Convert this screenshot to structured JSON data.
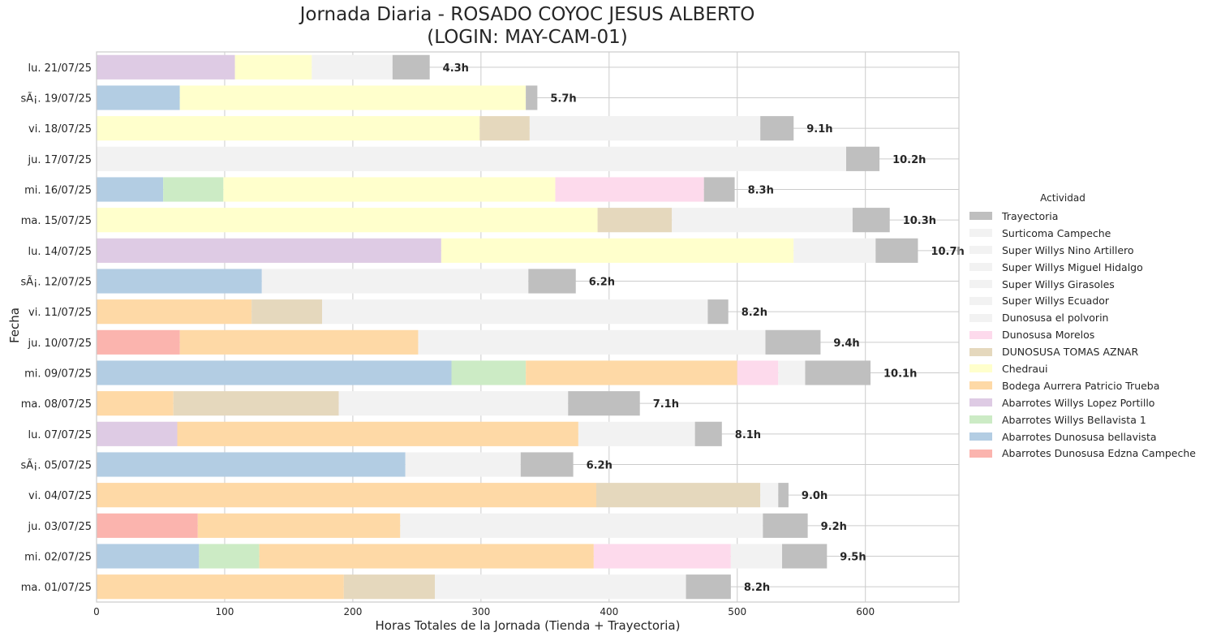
{
  "chart_data": {
    "type": "bar",
    "orientation": "horizontal",
    "stacked": true,
    "title_line1": "Jornada Diaria - ROSADO COYOC JESUS ALBERTO",
    "title_line2": "(LOGIN: MAY-CAM-01)",
    "xlabel": "Horas Totales de la Jornada (Tienda + Trayectoria)",
    "ylabel": "Fecha",
    "xlim": [
      0,
      673
    ],
    "xticks": [
      0,
      100,
      200,
      300,
      400,
      500,
      600
    ],
    "grid": true,
    "legend_title": "Actividad",
    "legend_position": "right",
    "legend": [
      {
        "name": "Trayectoria",
        "color": "#bfbfbf"
      },
      {
        "name": "Surticoma Campeche",
        "color": "#f2f2f2"
      },
      {
        "name": "Super Willys Nino Artillero",
        "color": "#f2f2f2"
      },
      {
        "name": "Super Willys Miguel Hidalgo",
        "color": "#f2f2f2"
      },
      {
        "name": "Super Willys Girasoles",
        "color": "#f2f2f2"
      },
      {
        "name": "Super Willys Ecuador",
        "color": "#f2f2f2"
      },
      {
        "name": "Dunosusa el polvorin",
        "color": "#f2f2f2"
      },
      {
        "name": "Dunosusa Morelos",
        "color": "#fddaec"
      },
      {
        "name": "DUNOSUSA TOMAS AZNAR",
        "color": "#e5d8bd"
      },
      {
        "name": "Chedraui",
        "color": "#ffffcc"
      },
      {
        "name": "Bodega Aurrera Patricio Trueba",
        "color": "#fed9a6"
      },
      {
        "name": "Abarrotes Willys Lopez Portillo",
        "color": "#decbe4"
      },
      {
        "name": "Abarrotes Willys Bellavista 1",
        "color": "#ccebc5"
      },
      {
        "name": "Abarrotes Dunosusa bellavista",
        "color": "#b3cde3"
      },
      {
        "name": "Abarrotes Dunosusa Edzna Campeche",
        "color": "#fbb4ae"
      }
    ],
    "colors": {
      "Abarrotes Dunosusa Edzna Campeche": "#fbb4ae",
      "Abarrotes Dunosusa bellavista": "#b3cde3",
      "Abarrotes Willys Bellavista 1": "#ccebc5",
      "Abarrotes Willys Lopez Portillo": "#decbe4",
      "Bodega Aurrera Patricio Trueba": "#fed9a6",
      "Chedraui": "#ffffcc",
      "DUNOSUSA TOMAS AZNAR": "#e5d8bd",
      "Dunosusa Morelos": "#fddaec",
      "Other stores": "#f2f2f2",
      "Trayectoria": "#bfbfbf"
    },
    "rows": [
      {
        "label": "lu. 21/07/25",
        "total": "4.3h",
        "segments": [
          {
            "series": "Abarrotes Willys Lopez Portillo",
            "value": 108
          },
          {
            "series": "Chedraui",
            "value": 60
          },
          {
            "series": "Other stores",
            "value": 63
          },
          {
            "series": "Trayectoria",
            "value": 29
          }
        ]
      },
      {
        "label": "sÃ¡. 19/07/25",
        "total": "5.7h",
        "segments": [
          {
            "series": "Abarrotes Dunosusa bellavista",
            "value": 65
          },
          {
            "series": "Chedraui",
            "value": 270
          },
          {
            "series": "Trayectoria",
            "value": 9
          }
        ]
      },
      {
        "label": "vi. 18/07/25",
        "total": "9.1h",
        "segments": [
          {
            "series": "Chedraui",
            "value": 299
          },
          {
            "series": "DUNOSUSA TOMAS AZNAR",
            "value": 39
          },
          {
            "series": "Other stores",
            "value": 180
          },
          {
            "series": "Trayectoria",
            "value": 26
          }
        ]
      },
      {
        "label": "ju. 17/07/25",
        "total": "10.2h",
        "segments": [
          {
            "series": "Other stores",
            "value": 585
          },
          {
            "series": "Trayectoria",
            "value": 26
          }
        ]
      },
      {
        "label": "mi. 16/07/25",
        "total": "8.3h",
        "segments": [
          {
            "series": "Abarrotes Dunosusa bellavista",
            "value": 52
          },
          {
            "series": "Abarrotes Willys Bellavista 1",
            "value": 47
          },
          {
            "series": "Chedraui",
            "value": 259
          },
          {
            "series": "Dunosusa Morelos",
            "value": 116
          },
          {
            "series": "Trayectoria",
            "value": 24
          }
        ]
      },
      {
        "label": "ma. 15/07/25",
        "total": "10.3h",
        "segments": [
          {
            "series": "Chedraui",
            "value": 391
          },
          {
            "series": "DUNOSUSA TOMAS AZNAR",
            "value": 58
          },
          {
            "series": "Other stores",
            "value": 141
          },
          {
            "series": "Trayectoria",
            "value": 29
          }
        ]
      },
      {
        "label": "lu. 14/07/25",
        "total": "10.7h",
        "segments": [
          {
            "series": "Abarrotes Willys Lopez Portillo",
            "value": 269
          },
          {
            "series": "Chedraui",
            "value": 275
          },
          {
            "series": "Other stores",
            "value": 64
          },
          {
            "series": "Trayectoria",
            "value": 33
          }
        ]
      },
      {
        "label": "sÃ¡. 12/07/25",
        "total": "6.2h",
        "segments": [
          {
            "series": "Abarrotes Dunosusa bellavista",
            "value": 129
          },
          {
            "series": "Other stores",
            "value": 208
          },
          {
            "series": "Trayectoria",
            "value": 37
          }
        ]
      },
      {
        "label": "vi. 11/07/25",
        "total": "8.2h",
        "segments": [
          {
            "series": "Bodega Aurrera Patricio Trueba",
            "value": 121
          },
          {
            "series": "DUNOSUSA TOMAS AZNAR",
            "value": 55
          },
          {
            "series": "Other stores",
            "value": 301
          },
          {
            "series": "Trayectoria",
            "value": 16
          }
        ]
      },
      {
        "label": "ju. 10/07/25",
        "total": "9.4h",
        "segments": [
          {
            "series": "Abarrotes Dunosusa Edzna Campeche",
            "value": 65
          },
          {
            "series": "Bodega Aurrera Patricio Trueba",
            "value": 186
          },
          {
            "series": "Other stores",
            "value": 271
          },
          {
            "series": "Trayectoria",
            "value": 43
          }
        ]
      },
      {
        "label": "mi. 09/07/25",
        "total": "10.1h",
        "segments": [
          {
            "series": "Abarrotes Dunosusa bellavista",
            "value": 277
          },
          {
            "series": "Abarrotes Willys Bellavista 1",
            "value": 58
          },
          {
            "series": "Bodega Aurrera Patricio Trueba",
            "value": 165
          },
          {
            "series": "Dunosusa Morelos",
            "value": 32
          },
          {
            "series": "Other stores",
            "value": 21
          },
          {
            "series": "Trayectoria",
            "value": 51
          }
        ]
      },
      {
        "label": "ma. 08/07/25",
        "total": "7.1h",
        "segments": [
          {
            "series": "Bodega Aurrera Patricio Trueba",
            "value": 60
          },
          {
            "series": "DUNOSUSA TOMAS AZNAR",
            "value": 129
          },
          {
            "series": "Other stores",
            "value": 179
          },
          {
            "series": "Trayectoria",
            "value": 56
          }
        ]
      },
      {
        "label": "lu. 07/07/25",
        "total": "8.1h",
        "segments": [
          {
            "series": "Abarrotes Willys Lopez Portillo",
            "value": 63
          },
          {
            "series": "Bodega Aurrera Patricio Trueba",
            "value": 313
          },
          {
            "series": "Other stores",
            "value": 91
          },
          {
            "series": "Trayectoria",
            "value": 21
          }
        ]
      },
      {
        "label": "sÃ¡. 05/07/25",
        "total": "6.2h",
        "segments": [
          {
            "series": "Abarrotes Dunosusa bellavista",
            "value": 241
          },
          {
            "series": "Other stores",
            "value": 90
          },
          {
            "series": "Trayectoria",
            "value": 41
          }
        ]
      },
      {
        "label": "vi. 04/07/25",
        "total": "9.0h",
        "segments": [
          {
            "series": "Bodega Aurrera Patricio Trueba",
            "value": 390
          },
          {
            "series": "DUNOSUSA TOMAS AZNAR",
            "value": 128
          },
          {
            "series": "Other stores",
            "value": 14
          },
          {
            "series": "Trayectoria",
            "value": 8
          }
        ]
      },
      {
        "label": "ju. 03/07/25",
        "total": "9.2h",
        "segments": [
          {
            "series": "Abarrotes Dunosusa Edzna Campeche",
            "value": 79
          },
          {
            "series": "Bodega Aurrera Patricio Trueba",
            "value": 158
          },
          {
            "series": "Other stores",
            "value": 283
          },
          {
            "series": "Trayectoria",
            "value": 35
          }
        ]
      },
      {
        "label": "mi. 02/07/25",
        "total": "9.5h",
        "segments": [
          {
            "series": "Abarrotes Dunosusa bellavista",
            "value": 80
          },
          {
            "series": "Abarrotes Willys Bellavista 1",
            "value": 47
          },
          {
            "series": "Bodega Aurrera Patricio Trueba",
            "value": 261
          },
          {
            "series": "Dunosusa Morelos",
            "value": 107
          },
          {
            "series": "Other stores",
            "value": 40
          },
          {
            "series": "Trayectoria",
            "value": 35
          }
        ]
      },
      {
        "label": "ma. 01/07/25",
        "total": "8.2h",
        "segments": [
          {
            "series": "Bodega Aurrera Patricio Trueba",
            "value": 193
          },
          {
            "series": "DUNOSUSA TOMAS AZNAR",
            "value": 71
          },
          {
            "series": "Other stores",
            "value": 196
          },
          {
            "series": "Trayectoria",
            "value": 35
          }
        ]
      }
    ]
  }
}
